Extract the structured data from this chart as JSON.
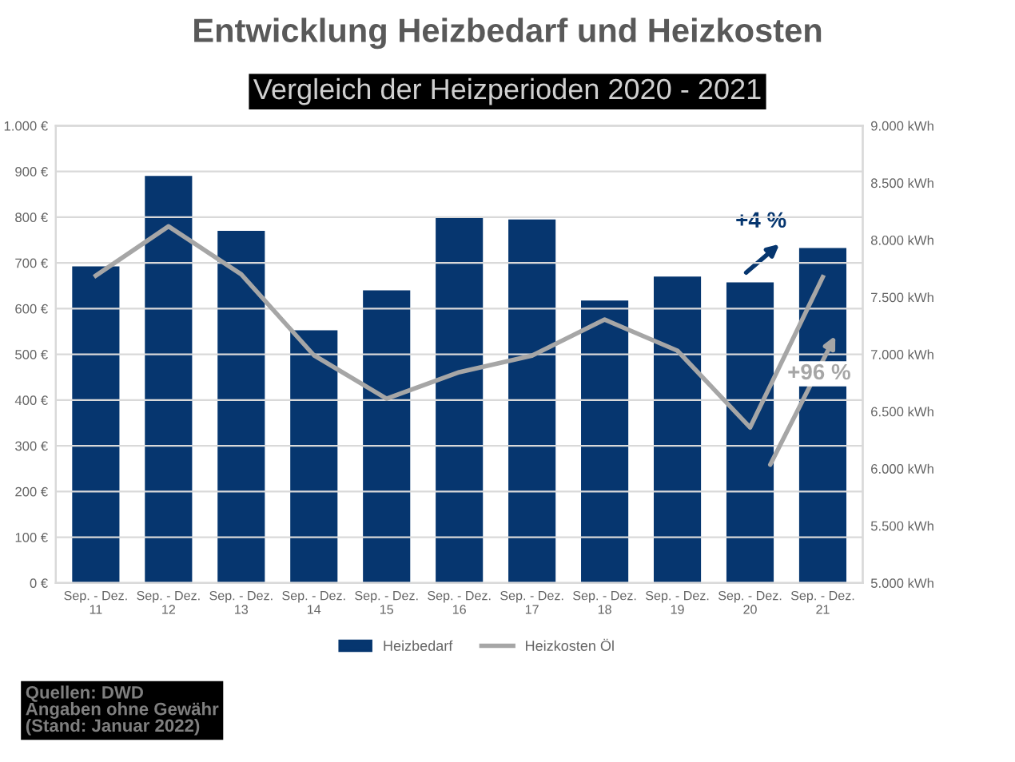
{
  "chart_data": {
    "type": "bar",
    "title": "Entwicklung Heizbedarf und Heizkosten",
    "subtitle": "Vergleich der Heizperioden 2020 - 2021",
    "categories": [
      "Sep. - Dez.\n11",
      "Sep. - Dez.\n12",
      "Sep. - Dez.\n13",
      "Sep. - Dez.\n14",
      "Sep. - Dez.\n15",
      "Sep. - Dez.\n16",
      "Sep. - Dez.\n17",
      "Sep. - Dez.\n18",
      "Sep. - Dez.\n19",
      "Sep. - Dez.\n20",
      "Sep. - Dez.\n21"
    ],
    "series": [
      {
        "name": "Heizbedarf",
        "axis": "y2",
        "color": "#06366f",
        "values": [
          7770,
          8560,
          8080,
          7210,
          7560,
          8200,
          8180,
          7470,
          7680,
          7630,
          7930
        ]
      },
      {
        "name": "Heizkosten Öl",
        "type": "line",
        "axis": "y",
        "color": "#a6a6a6",
        "values": [
          672,
          780,
          675,
          498,
          403,
          461,
          497,
          576,
          508,
          340,
          669
        ]
      }
    ],
    "ylim": [
      0,
      1000
    ],
    "yticks": [
      {
        "value": 0,
        "label": "0 €"
      },
      {
        "value": 100,
        "label": "100 €"
      },
      {
        "value": 200,
        "label": "200 €"
      },
      {
        "value": 300,
        "label": "300 €"
      },
      {
        "value": 400,
        "label": "400 €"
      },
      {
        "value": 500,
        "label": "500 €"
      },
      {
        "value": 600,
        "label": "600 €"
      },
      {
        "value": 700,
        "label": "700 €"
      },
      {
        "value": 800,
        "label": "800 €"
      },
      {
        "value": 900,
        "label": "900 €"
      },
      {
        "value": 1000,
        "label": "1.000 €"
      }
    ],
    "y2lim": [
      5000,
      9000
    ],
    "y2ticks": [
      {
        "value": 5000,
        "label": "5.000 kWh"
      },
      {
        "value": 5500,
        "label": "5.500 kWh"
      },
      {
        "value": 6000,
        "label": "6.000 kWh"
      },
      {
        "value": 6500,
        "label": "6.500 kWh"
      },
      {
        "value": 7000,
        "label": "7.000 kWh"
      },
      {
        "value": 7500,
        "label": "7.500 kWh"
      },
      {
        "value": 8000,
        "label": "8.000 kWh"
      },
      {
        "value": 8500,
        "label": "8.500 kWh"
      },
      {
        "value": 9000,
        "label": "9.000 kWh"
      }
    ],
    "grid": "y",
    "legend": "bottom",
    "annotations": [
      "+4 %",
      "+96 %",
      "Quellen: DWD\nAngaben ohne Gewähr\n(Stand: Januar 2022)"
    ]
  }
}
